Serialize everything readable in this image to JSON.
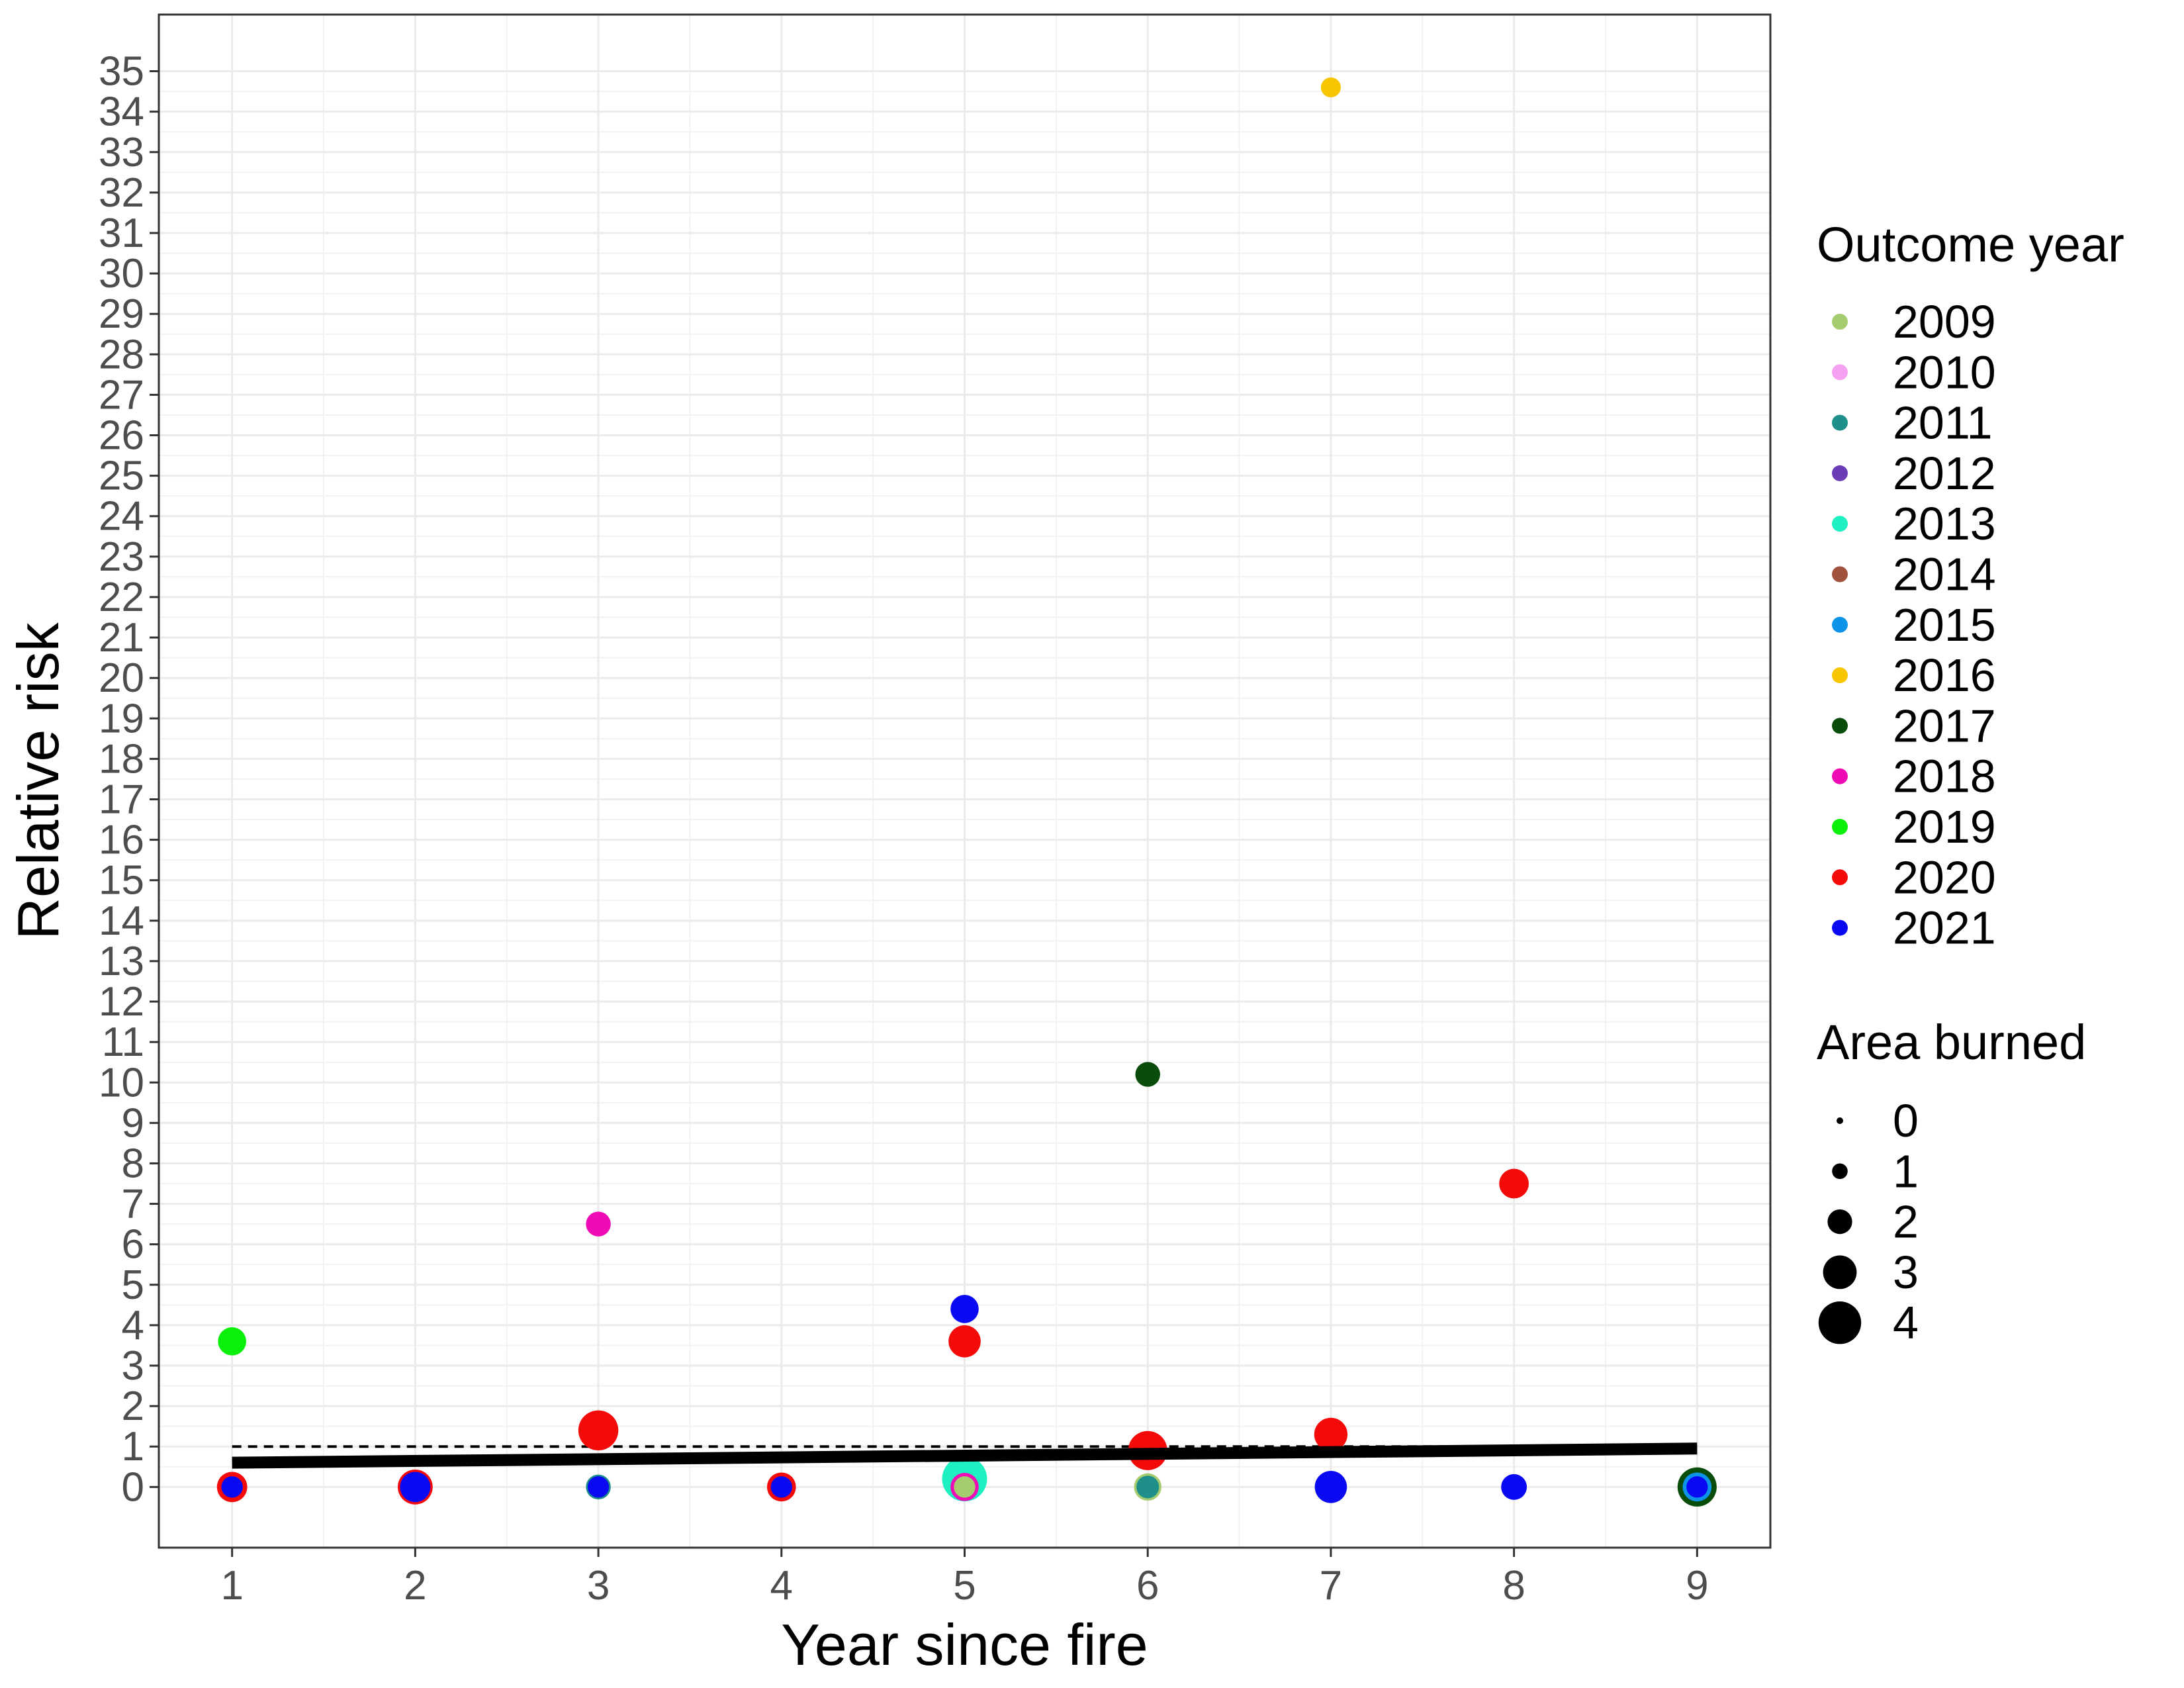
{
  "chart_data": {
    "type": "scatter",
    "xlabel": "Year since fire",
    "ylabel": "Relative risk",
    "xlim": [
      0.6,
      9.4
    ],
    "ylim": [
      -1.5,
      36.4
    ],
    "x_ticks": [
      1,
      2,
      3,
      4,
      5,
      6,
      7,
      8,
      9
    ],
    "y_ticks": [
      0,
      1,
      2,
      3,
      4,
      5,
      6,
      7,
      8,
      9,
      10,
      11,
      12,
      13,
      14,
      15,
      16,
      17,
      18,
      19,
      20,
      21,
      22,
      23,
      24,
      25,
      26,
      27,
      28,
      29,
      30,
      31,
      32,
      33,
      34,
      35
    ],
    "grid": true,
    "legend_position": "right",
    "color_legend": {
      "title": "Outcome year",
      "entries": [
        {
          "label": "2009",
          "color": "#a6cc70"
        },
        {
          "label": "2010",
          "color": "#f7a1f2"
        },
        {
          "label": "2011",
          "color": "#1f8f8a"
        },
        {
          "label": "2012",
          "color": "#6a3cb5"
        },
        {
          "label": "2013",
          "color": "#1ff0c2"
        },
        {
          "label": "2014",
          "color": "#a0523d"
        },
        {
          "label": "2015",
          "color": "#0d94e8"
        },
        {
          "label": "2016",
          "color": "#f7c600"
        },
        {
          "label": "2017",
          "color": "#0a4d0a"
        },
        {
          "label": "2018",
          "color": "#f00cb4"
        },
        {
          "label": "2019",
          "color": "#0af00a"
        },
        {
          "label": "2020",
          "color": "#f50a0a"
        },
        {
          "label": "2021",
          "color": "#0a0af2"
        }
      ]
    },
    "size_legend": {
      "title": "Area burned",
      "entries": [
        "0",
        "1",
        "2",
        "3",
        "4"
      ],
      "values": [
        0,
        1,
        2,
        3,
        4
      ]
    },
    "points": [
      {
        "x": 1,
        "y": 3.6,
        "year": "2019",
        "area": 1
      },
      {
        "x": 1,
        "y": 0,
        "year": "2020",
        "area": 1.3
      },
      {
        "x": 1,
        "y": 0,
        "year": "2021",
        "area": 0.3
      },
      {
        "x": 2,
        "y": 0,
        "year": "2020",
        "area": 2.1
      },
      {
        "x": 2,
        "y": 0,
        "year": "2021",
        "area": 1.3
      },
      {
        "x": 3,
        "y": 6.5,
        "year": "2018",
        "area": 0.6
      },
      {
        "x": 3,
        "y": 1.4,
        "year": "2020",
        "area": 3.2
      },
      {
        "x": 3,
        "y": 0,
        "year": "2011",
        "area": 0.6
      },
      {
        "x": 3,
        "y": 0,
        "year": "2021",
        "area": 0.3
      },
      {
        "x": 4,
        "y": 0,
        "year": "2020",
        "area": 1.1
      },
      {
        "x": 4,
        "y": 0,
        "year": "2021",
        "area": 0.3
      },
      {
        "x": 5,
        "y": 4.4,
        "year": "2021",
        "area": 1.0
      },
      {
        "x": 5,
        "y": 3.6,
        "year": "2020",
        "area": 1.6
      },
      {
        "x": 5,
        "y": 0.2,
        "year": "2013",
        "area": 4.5
      },
      {
        "x": 5,
        "y": 0,
        "year": "2018",
        "area": 1.0
      },
      {
        "x": 5,
        "y": 0,
        "year": "2009",
        "area": 0.3
      },
      {
        "x": 6,
        "y": 10.2,
        "year": "2017",
        "area": 0.6
      },
      {
        "x": 6,
        "y": 0.9,
        "year": "2020",
        "area": 3.0
      },
      {
        "x": 6,
        "y": 0,
        "year": "2009",
        "area": 0.9
      },
      {
        "x": 6,
        "y": 0,
        "year": "2011",
        "area": 0.4
      },
      {
        "x": 7,
        "y": 34.6,
        "year": "2016",
        "area": 0.2
      },
      {
        "x": 7,
        "y": 1.3,
        "year": "2020",
        "area": 1.8
      },
      {
        "x": 7,
        "y": 0,
        "year": "2021",
        "area": 1.6
      },
      {
        "x": 8,
        "y": 7.5,
        "year": "2020",
        "area": 1.2
      },
      {
        "x": 8,
        "y": 0,
        "year": "2021",
        "area": 0.7
      },
      {
        "x": 9,
        "y": 0,
        "year": "2017",
        "area": 3.0
      },
      {
        "x": 9,
        "y": 0,
        "year": "2015",
        "area": 1.1
      },
      {
        "x": 9,
        "y": 0,
        "year": "2021",
        "area": 0.3
      }
    ],
    "reference_line": {
      "y": 1,
      "style": "dashed"
    },
    "trend_line": {
      "x": [
        1,
        9
      ],
      "y": [
        0.6,
        0.95
      ]
    }
  }
}
